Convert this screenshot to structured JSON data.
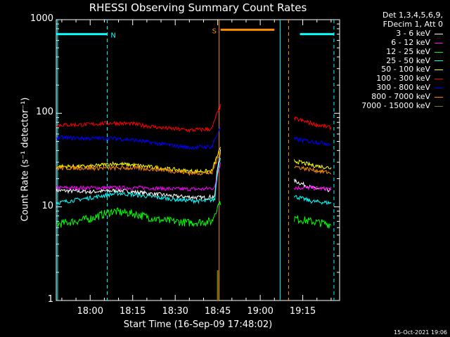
{
  "chart_data": {
    "type": "line",
    "title": "RHESSI Observing Summary Count Rates",
    "xlabel": "Start Time (16-Sep-09 17:48:02)",
    "ylabel": "Count Rate (s⁻¹ detector⁻¹)",
    "y_scale": "log",
    "ylim": [
      1,
      1000
    ],
    "xlim": [
      "17:48:02",
      "19:28:00"
    ],
    "x_ticks": [
      "18:00",
      "18:15",
      "18:30",
      "18:45",
      "19:00",
      "19:15"
    ],
    "y_ticks": [
      "1",
      "10",
      "100",
      "1000"
    ],
    "legend_header": [
      "Det 1,3,4,5,6,9,",
      "FDecim 1, Att 0"
    ],
    "legend_position": "right, outside plot",
    "series": [
      {
        "name": "3 - 6 keV",
        "color": "#ffffff",
        "points": [
          [
            "17:48",
            15
          ],
          [
            "18:00",
            14.5
          ],
          [
            "18:10",
            15
          ],
          [
            "18:20",
            14
          ],
          [
            "18:30",
            13
          ],
          [
            "18:40",
            12.5
          ],
          [
            "18:44",
            13
          ],
          [
            "18:46",
            40
          ],
          [
            "19:12",
            19
          ],
          [
            "19:18",
            16
          ],
          [
            "19:25",
            15
          ]
        ]
      },
      {
        "name": "6 - 12 keV",
        "color": "#ff00ff",
        "points": [
          [
            "17:48",
            16
          ],
          [
            "18:00",
            16
          ],
          [
            "18:10",
            16
          ],
          [
            "18:20",
            16
          ],
          [
            "18:30",
            15.5
          ],
          [
            "18:40",
            15.5
          ],
          [
            "18:44",
            16
          ],
          [
            "18:46",
            30
          ],
          [
            "19:12",
            16
          ],
          [
            "19:18",
            16
          ],
          [
            "19:25",
            15.5
          ]
        ]
      },
      {
        "name": "12 - 25 keV",
        "color": "#00ff00",
        "points": [
          [
            "17:48",
            6.5
          ],
          [
            "18:00",
            7.5
          ],
          [
            "18:08",
            9
          ],
          [
            "18:15",
            8.5
          ],
          [
            "18:25",
            7.2
          ],
          [
            "18:35",
            6.8
          ],
          [
            "18:43",
            7
          ],
          [
            "18:45.5",
            11
          ],
          [
            "19:12.5",
            7.5
          ],
          [
            "19:18",
            7
          ],
          [
            "19:25",
            6.5
          ]
        ]
      },
      {
        "name": "25 - 50 keV",
        "color": "#00ffff",
        "points": [
          [
            "17:48",
            11
          ],
          [
            "18:00",
            12.5
          ],
          [
            "18:10",
            14
          ],
          [
            "18:20",
            13
          ],
          [
            "18:30",
            12
          ],
          [
            "18:40",
            11.5
          ],
          [
            "18:44",
            12
          ],
          [
            "18:46",
            35
          ],
          [
            "19:12",
            13
          ],
          [
            "19:18",
            11.5
          ],
          [
            "19:25",
            11
          ]
        ]
      },
      {
        "name": "50 - 100 keV",
        "color": "#ffff00",
        "points": [
          [
            "17:48",
            27
          ],
          [
            "18:00",
            27
          ],
          [
            "18:08",
            29
          ],
          [
            "18:15",
            28
          ],
          [
            "18:25",
            26
          ],
          [
            "18:35",
            24
          ],
          [
            "18:43",
            24
          ],
          [
            "18:46",
            42
          ],
          [
            "19:12",
            31
          ],
          [
            "19:18",
            28
          ],
          [
            "19:25",
            26
          ]
        ]
      },
      {
        "name": "100 - 300 keV",
        "color": "#ff0000",
        "points": [
          [
            "17:48",
            75
          ],
          [
            "18:00",
            76
          ],
          [
            "18:08",
            79
          ],
          [
            "18:15",
            77
          ],
          [
            "18:25",
            70
          ],
          [
            "18:35",
            66
          ],
          [
            "18:43",
            68
          ],
          [
            "18:46",
            120
          ],
          [
            "19:12",
            88
          ],
          [
            "19:18",
            78
          ],
          [
            "19:25",
            70
          ]
        ]
      },
      {
        "name": "300 - 800 keV",
        "color": "#0000ff",
        "points": [
          [
            "17:48",
            55
          ],
          [
            "18:00",
            54
          ],
          [
            "18:08",
            54
          ],
          [
            "18:15",
            52
          ],
          [
            "18:25",
            47
          ],
          [
            "18:35",
            43
          ],
          [
            "18:43",
            44
          ],
          [
            "18:46",
            70
          ],
          [
            "19:12",
            53
          ],
          [
            "19:18",
            50
          ],
          [
            "19:25",
            47
          ]
        ]
      },
      {
        "name": "800 - 7000 keV",
        "color": "#ff8c00",
        "points": [
          [
            "17:48",
            26
          ],
          [
            "18:00",
            26
          ],
          [
            "18:08",
            26
          ],
          [
            "18:15",
            26
          ],
          [
            "18:25",
            25
          ],
          [
            "18:35",
            23
          ],
          [
            "18:43",
            23
          ],
          [
            "18:46",
            38
          ],
          [
            "19:12",
            27
          ],
          [
            "19:18",
            25
          ],
          [
            "19:25",
            23
          ]
        ]
      },
      {
        "name": "7000 - 15000 keV",
        "color": "#808000",
        "points": []
      }
    ],
    "flag_lines": [
      {
        "label": "N",
        "color": "#00ffff",
        "level": 700,
        "segments": [
          [
            "17:48",
            "18:06"
          ],
          [
            "19:14",
            "19:26"
          ]
        ]
      },
      {
        "label": "S",
        "color": "#ff8c00",
        "level": 780,
        "segments": [
          [
            "18:46",
            "19:05"
          ]
        ]
      }
    ]
  }
}
